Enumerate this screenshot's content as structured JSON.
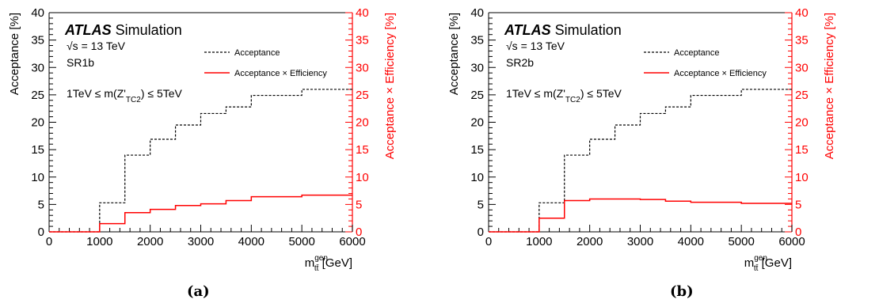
{
  "chart_data": [
    {
      "type": "line",
      "subtype": "step-histogram",
      "experiment": "ATLAS",
      "label": "Simulation",
      "energy": "√s = 13 TeV",
      "region": "SR1b",
      "cut_prefix": "1TeV ≤ m(Z'",
      "cut_sub": "TC2",
      "cut_suffix": ") ≤ 5TeV",
      "xlabel_main": "m",
      "xlabel_sup": "gen",
      "xlabel_sub": "tt̄",
      "xlabel_unit": " [GeV]",
      "ylabel": "Acceptance [%]",
      "y2label": "Acceptance × Efficiency [%]",
      "xlim": [
        0,
        6000
      ],
      "ylim": [
        0,
        40
      ],
      "xticks": [
        0,
        1000,
        2000,
        3000,
        4000,
        5000,
        6000
      ],
      "yticks": [
        0,
        5,
        10,
        15,
        20,
        25,
        30,
        35,
        40
      ],
      "bin_edges": [
        0,
        500,
        1000,
        1500,
        2000,
        2500,
        3000,
        3500,
        4000,
        5000,
        6000
      ],
      "legend_position": "top-right",
      "series": [
        {
          "name": "Acceptance",
          "color": "#000000",
          "style": "dashed",
          "values": [
            0,
            0,
            5.3,
            14.0,
            16.9,
            19.5,
            21.6,
            22.8,
            24.9,
            26.0
          ]
        },
        {
          "name": "Acceptance × Efficiency",
          "color": "#ff0000",
          "style": "solid",
          "values": [
            0,
            0,
            1.5,
            3.5,
            4.1,
            4.8,
            5.1,
            5.7,
            6.4,
            6.7
          ]
        }
      ],
      "caption": "(a)"
    },
    {
      "type": "line",
      "subtype": "step-histogram",
      "experiment": "ATLAS",
      "label": "Simulation",
      "energy": "√s = 13 TeV",
      "region": "SR2b",
      "cut_prefix": "1TeV ≤ m(Z'",
      "cut_sub": "TC2",
      "cut_suffix": ") ≤ 5TeV",
      "xlabel_main": "m",
      "xlabel_sup": "gen",
      "xlabel_sub": "tt̄",
      "xlabel_unit": " [GeV]",
      "ylabel": "Acceptance [%]",
      "y2label": "Acceptance × Efficiency [%]",
      "xlim": [
        0,
        6000
      ],
      "ylim": [
        0,
        40
      ],
      "xticks": [
        0,
        1000,
        2000,
        3000,
        4000,
        5000,
        6000
      ],
      "yticks": [
        0,
        5,
        10,
        15,
        20,
        25,
        30,
        35,
        40
      ],
      "bin_edges": [
        0,
        500,
        1000,
        1500,
        2000,
        2500,
        3000,
        3500,
        4000,
        5000,
        6000
      ],
      "legend_position": "top-right",
      "series": [
        {
          "name": "Acceptance",
          "color": "#000000",
          "style": "dashed",
          "values": [
            0,
            0,
            5.3,
            14.0,
            16.9,
            19.5,
            21.6,
            22.8,
            24.9,
            26.0
          ]
        },
        {
          "name": "Acceptance × Efficiency",
          "color": "#ff0000",
          "style": "solid",
          "values": [
            0,
            0,
            2.5,
            5.7,
            6.0,
            6.0,
            5.9,
            5.6,
            5.4,
            5.2
          ]
        }
      ],
      "caption": "(b)"
    }
  ]
}
